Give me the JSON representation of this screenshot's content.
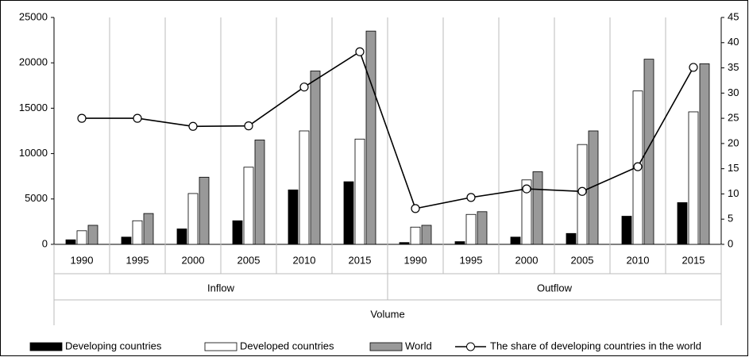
{
  "chart_data": {
    "type": "bar_line",
    "categories": [
      "1990",
      "1995",
      "2000",
      "2005",
      "2010",
      "2015",
      "1990",
      "1995",
      "2000",
      "2005",
      "2010",
      "2015"
    ],
    "groups": [
      "Inflow",
      "Outflow"
    ],
    "x_label": "Volume",
    "series": [
      {
        "name": "Developing countries",
        "color": "#000000",
        "type": "bar",
        "values": [
          500,
          800,
          1700,
          2600,
          6000,
          6900,
          200,
          300,
          800,
          1200,
          3100,
          4600
        ]
      },
      {
        "name": "Developed countries",
        "color": "#ffffff",
        "type": "bar",
        "values": [
          1500,
          2600,
          5600,
          8500,
          12500,
          11600,
          1900,
          3300,
          7100,
          11000,
          16900,
          14600
        ]
      },
      {
        "name": "World",
        "color": "#999999",
        "type": "bar",
        "values": [
          2100,
          3400,
          7400,
          11500,
          19100,
          23500,
          2100,
          3600,
          8000,
          12500,
          20400,
          19900
        ]
      },
      {
        "name": "The share of developing countries in the world",
        "color": "#000000",
        "type": "line",
        "axis": "y2",
        "values": [
          25,
          25,
          23.4,
          23.5,
          31.2,
          38.2,
          7.1,
          9.3,
          11,
          10.5,
          15.4,
          35.1
        ]
      }
    ],
    "ylim": [
      0,
      25000
    ],
    "yticks": [
      0,
      5000,
      10000,
      15000,
      20000,
      25000
    ],
    "y2lim": [
      0,
      45
    ],
    "y2ticks": [
      0,
      5,
      10,
      15,
      20,
      25,
      30,
      35,
      40,
      45
    ],
    "legend": "bottom"
  }
}
